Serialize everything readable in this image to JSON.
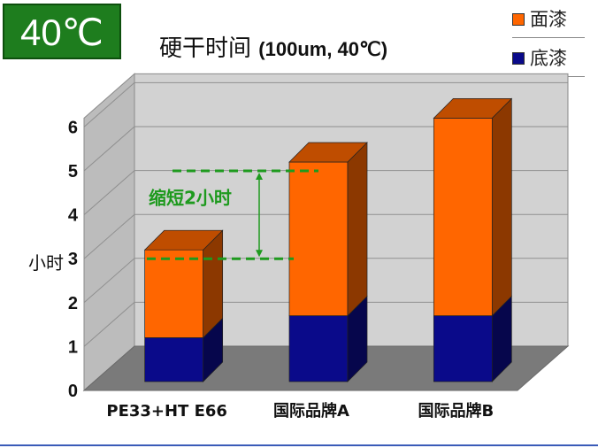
{
  "badge": "40℃",
  "chart_data": {
    "type": "bar",
    "stacked": true,
    "three_d": true,
    "title": "硬干时间",
    "title_sub": "(100um, 40℃)",
    "ylabel": "小时",
    "xlabel": "",
    "ylim": [
      0,
      6
    ],
    "yticks": [
      "0",
      "1",
      "2",
      "3",
      "4",
      "5",
      "6"
    ],
    "categories": [
      "PE33+HT E66",
      "国际品牌A",
      "国际品牌B"
    ],
    "series": [
      {
        "name": "底漆",
        "values": [
          1.0,
          1.5,
          1.5
        ],
        "color": "#0a0a8a"
      },
      {
        "name": "面漆",
        "values": [
          2.0,
          3.5,
          4.5
        ],
        "color": "#ff6600"
      }
    ],
    "legend_position": "top-right",
    "grid": true,
    "annotation": {
      "text": "缩短2小时",
      "from": 3.0,
      "to": 5.0,
      "color": "#1e9a1e"
    }
  }
}
